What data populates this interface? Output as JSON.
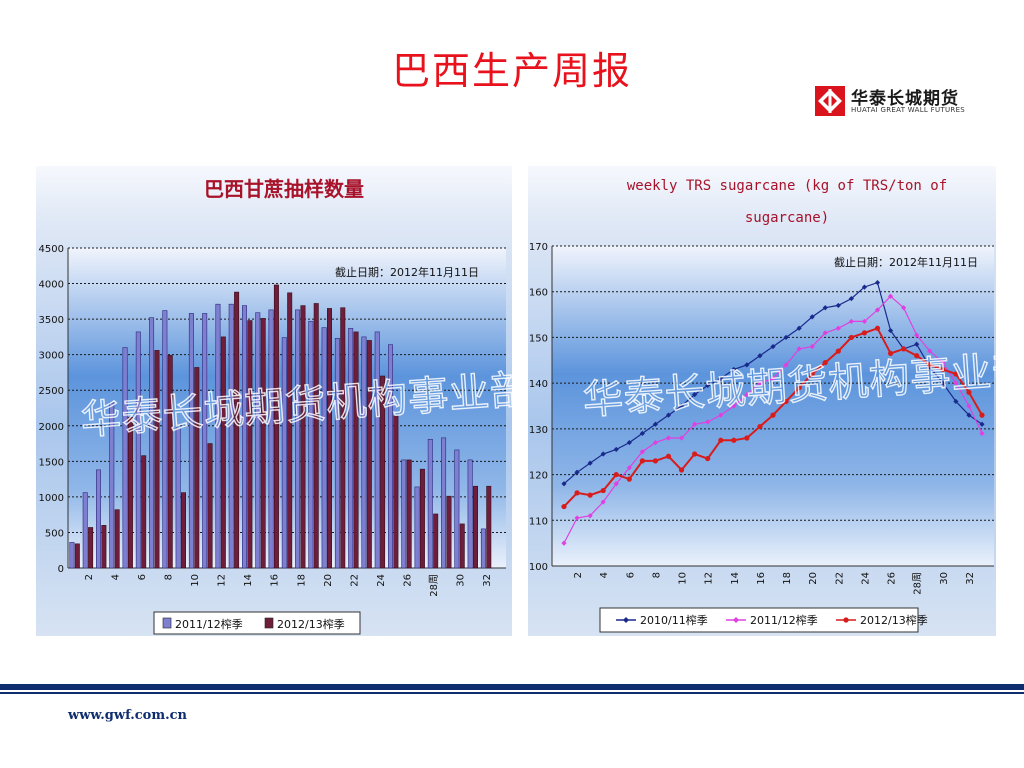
{
  "page": {
    "title": "巴西生产周报",
    "logo_cn": "华泰长城期货",
    "logo_en": "HUATAI GREAT WALL FUTURES",
    "footer_url": "www.gwf.com.cn",
    "watermark": "华泰长城期货机构事业部",
    "colors": {
      "title": "#e8111c",
      "accent_bar": "#0e2d6e"
    }
  },
  "chart_data": [
    {
      "type": "bar",
      "title": "巴西甘蔗抽样数量",
      "annotation": "截止日期：2012年11月11日",
      "xlabel": "",
      "ylabel": "",
      "ylim": [
        0,
        4500
      ],
      "yticks": [
        0,
        500,
        1000,
        1500,
        2000,
        2500,
        3000,
        3500,
        4000,
        4500
      ],
      "xtick_labels": [
        "2",
        "4",
        "6",
        "8",
        "10",
        "12",
        "14",
        "16",
        "18",
        "20",
        "22",
        "24",
        "26",
        "28周",
        "30",
        "32"
      ],
      "categories": [
        1,
        2,
        3,
        4,
        5,
        6,
        7,
        8,
        9,
        10,
        11,
        12,
        13,
        14,
        15,
        16,
        17,
        18,
        19,
        20,
        21,
        22,
        23,
        24,
        25,
        26,
        27,
        28,
        29,
        30,
        31,
        32,
        33
      ],
      "grid": true,
      "legend_position": "bottom",
      "series": [
        {
          "name": "2011/12榨季",
          "color": "#7f7fd2",
          "values": [
            360,
            1060,
            1380,
            2320,
            3100,
            3320,
            3520,
            3620,
            1970,
            3580,
            3580,
            3710,
            3710,
            3690,
            3590,
            3630,
            3240,
            3630,
            3470,
            3380,
            3230,
            3370,
            3250,
            3320,
            3140,
            1520,
            1140,
            1810,
            1830,
            1660,
            1520,
            550,
            null
          ]
        },
        {
          "name": "2012/13榨季",
          "color": "#6e1e3a",
          "values": [
            340,
            570,
            600,
            820,
            2120,
            1580,
            3060,
            2990,
            1060,
            2820,
            1750,
            3250,
            3880,
            3480,
            3510,
            3980,
            3870,
            3690,
            3720,
            3650,
            3660,
            3320,
            3200,
            2700,
            2140,
            1520,
            1390,
            760,
            1010,
            620,
            1150,
            1150,
            null
          ]
        }
      ]
    },
    {
      "type": "line",
      "title": "weekly TRS sugarcane (kg of TRS/ton of sugarcane)",
      "annotation": "截止日期：2012年11月11日",
      "xlabel": "",
      "ylabel": "",
      "ylim": [
        100,
        170
      ],
      "yticks": [
        100,
        110,
        120,
        130,
        140,
        150,
        160,
        170
      ],
      "xtick_labels": [
        "2",
        "4",
        "6",
        "8",
        "10",
        "12",
        "14",
        "16",
        "18",
        "20",
        "22",
        "24",
        "26",
        "28周",
        "30",
        "32"
      ],
      "grid": true,
      "legend_position": "bottom",
      "series": [
        {
          "name": "2010/11榨季",
          "color": "#1a2a8c",
          "marker": "diamond",
          "x": [
            1,
            2,
            3,
            4,
            5,
            6,
            7,
            8,
            9,
            10,
            11,
            12,
            13,
            14,
            15,
            16,
            17,
            18,
            19,
            20,
            21,
            22,
            23,
            24,
            25,
            26,
            27,
            28,
            29,
            30,
            31,
            32,
            33
          ],
          "y": [
            118,
            120.5,
            122.5,
            124.5,
            125.5,
            127,
            129,
            131,
            133,
            135,
            137.5,
            139.5,
            141,
            143,
            144,
            146,
            148,
            150,
            152,
            154.5,
            156.5,
            157,
            158.5,
            161,
            162,
            151.5,
            147.5,
            148.5,
            143.5,
            140,
            136,
            133,
            131
          ]
        },
        {
          "name": "2011/12榨季",
          "color": "#e040e0",
          "marker": "diamond",
          "x": [
            1,
            2,
            3,
            4,
            5,
            6,
            7,
            8,
            9,
            10,
            11,
            12,
            13,
            14,
            15,
            16,
            17,
            18,
            19,
            20,
            21,
            22,
            23,
            24,
            25,
            26,
            27,
            28,
            29,
            30,
            31,
            32,
            33
          ],
          "y": [
            105,
            110.5,
            111,
            114,
            118,
            121.5,
            125,
            127,
            128,
            128,
            131,
            131.5,
            133,
            135,
            137.5,
            140,
            141,
            144,
            147.5,
            148,
            151,
            152,
            153.5,
            153.5,
            156,
            159,
            156.5,
            150.5,
            147,
            144.5,
            140,
            135,
            129
          ]
        },
        {
          "name": "2012/13榨季",
          "color": "#d81c1c",
          "marker": "circle",
          "x": [
            1,
            2,
            3,
            4,
            5,
            6,
            7,
            8,
            9,
            10,
            11,
            12,
            13,
            14,
            15,
            16,
            17,
            18,
            19,
            20,
            21,
            22,
            23,
            24,
            25,
            26,
            27,
            28,
            29,
            30,
            31,
            32,
            33
          ],
          "y": [
            113,
            116,
            115.5,
            116.5,
            120,
            119,
            123,
            123,
            124,
            121,
            124.5,
            123.5,
            127.5,
            127.5,
            128,
            130.5,
            133,
            136,
            139,
            142,
            144.5,
            147,
            150,
            151,
            152,
            146.5,
            147.5,
            146,
            144,
            143,
            142,
            138,
            133
          ]
        }
      ]
    }
  ]
}
